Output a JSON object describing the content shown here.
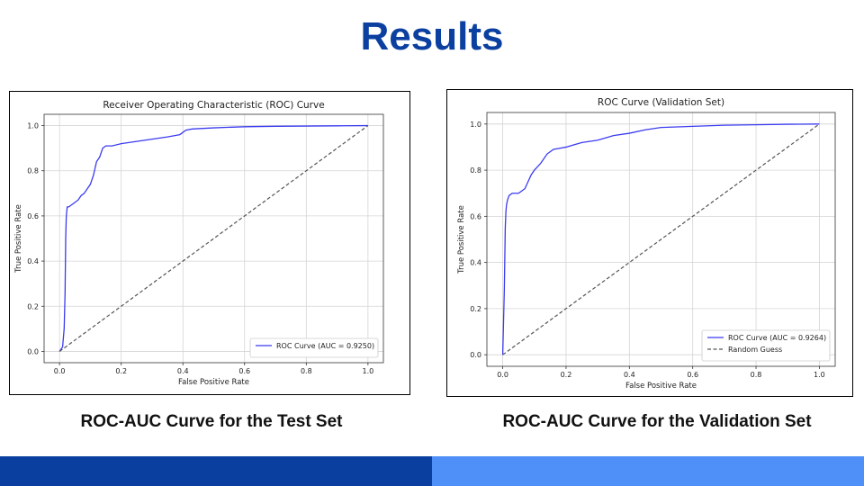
{
  "slide": {
    "title": "Results",
    "captions": [
      "ROC-AUC Curve for the Test Set",
      "ROC-AUC Curve for the Validation Set"
    ],
    "colors": {
      "title": "#0b40a0",
      "footer_left": "#0a3fa0",
      "footer_right": "#4e8ff8"
    }
  },
  "chart_data": [
    {
      "type": "line",
      "title": "Receiver Operating Characteristic (ROC) Curve",
      "xlabel": "False Positive Rate",
      "ylabel": "True Positive Rate",
      "xlim": [
        0,
        1
      ],
      "ylim": [
        0,
        1
      ],
      "xticks": [
        "0.0",
        "0.2",
        "0.4",
        "0.6",
        "0.8",
        "1.0"
      ],
      "yticks": [
        "0.0",
        "0.2",
        "0.4",
        "0.6",
        "0.8",
        "1.0"
      ],
      "grid": true,
      "legend": "lower-right",
      "series": [
        {
          "name": "ROC Curve (AUC = 0.9250)",
          "color": "#3b3bf0",
          "style": "solid",
          "x": [
            0,
            0.01,
            0.015,
            0.018,
            0.02,
            0.022,
            0.025,
            0.025,
            0.03,
            0.04,
            0.05,
            0.06,
            0.07,
            0.08,
            0.09,
            0.1,
            0.11,
            0.12,
            0.13,
            0.14,
            0.15,
            0.17,
            0.2,
            0.25,
            0.3,
            0.35,
            0.39,
            0.4,
            0.41,
            0.43,
            0.5,
            0.6,
            0.7,
            0.8,
            0.9,
            1.0
          ],
          "y": [
            0,
            0.02,
            0.1,
            0.26,
            0.5,
            0.6,
            0.64,
            0.64,
            0.64,
            0.65,
            0.66,
            0.67,
            0.69,
            0.7,
            0.72,
            0.74,
            0.78,
            0.84,
            0.86,
            0.9,
            0.91,
            0.91,
            0.92,
            0.93,
            0.94,
            0.95,
            0.96,
            0.97,
            0.98,
            0.985,
            0.99,
            0.995,
            0.997,
            0.998,
            0.999,
            1.0
          ]
        },
        {
          "name": "",
          "color": "#555555",
          "style": "dashed",
          "x": [
            0,
            1
          ],
          "y": [
            0,
            1
          ]
        }
      ]
    },
    {
      "type": "line",
      "title": "ROC Curve (Validation Set)",
      "xlabel": "False Positive Rate",
      "ylabel": "True Positive Rate",
      "xlim": [
        0,
        1
      ],
      "ylim": [
        0,
        1
      ],
      "xticks": [
        "0.0",
        "0.2",
        "0.4",
        "0.6",
        "0.8",
        "1.0"
      ],
      "yticks": [
        "0.0",
        "0.2",
        "0.4",
        "0.6",
        "0.8",
        "1.0"
      ],
      "grid": true,
      "legend": "lower-right",
      "series": [
        {
          "name": "ROC Curve (AUC = 0.9264)",
          "color": "#3b3bf0",
          "style": "solid",
          "x": [
            0,
            0.005,
            0.008,
            0.01,
            0.012,
            0.015,
            0.02,
            0.03,
            0.05,
            0.07,
            0.08,
            0.09,
            0.1,
            0.12,
            0.14,
            0.16,
            0.18,
            0.2,
            0.25,
            0.3,
            0.35,
            0.4,
            0.45,
            0.5,
            0.6,
            0.7,
            0.8,
            0.9,
            1.0
          ],
          "y": [
            0,
            0.28,
            0.55,
            0.62,
            0.65,
            0.67,
            0.69,
            0.7,
            0.7,
            0.72,
            0.75,
            0.78,
            0.8,
            0.83,
            0.87,
            0.89,
            0.895,
            0.9,
            0.92,
            0.93,
            0.95,
            0.96,
            0.975,
            0.985,
            0.99,
            0.995,
            0.997,
            0.999,
            1.0
          ]
        },
        {
          "name": "Random Guess",
          "color": "#555555",
          "style": "dashed",
          "x": [
            0,
            1
          ],
          "y": [
            0,
            1
          ]
        }
      ]
    }
  ]
}
